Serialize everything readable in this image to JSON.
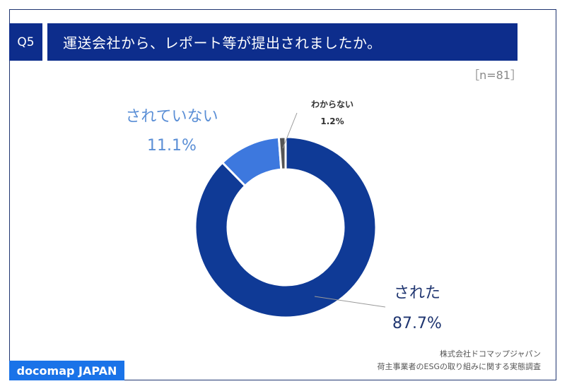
{
  "header": {
    "question": "Q5",
    "title": "運送会社から、レポート等が提出されましたか。",
    "sample_size": "［n=81］"
  },
  "footer": {
    "company": "株式会社ドコマップジャパン",
    "survey": "荷主事業者のESGの取り組みに関する実態調査",
    "logo": "docomap JAPAN"
  },
  "chart_data": {
    "type": "pie",
    "donut": true,
    "categories": [
      "された",
      "されていない",
      "わからない"
    ],
    "values": [
      87.7,
      11.1,
      1.2
    ],
    "value_labels": [
      "87.7%",
      "11.1%",
      "1.2%"
    ],
    "colors": [
      "#0f3a96",
      "#3d78de",
      "#555555"
    ],
    "label_colors": [
      "#1f3570",
      "#5b8fd6",
      "#333333"
    ]
  }
}
